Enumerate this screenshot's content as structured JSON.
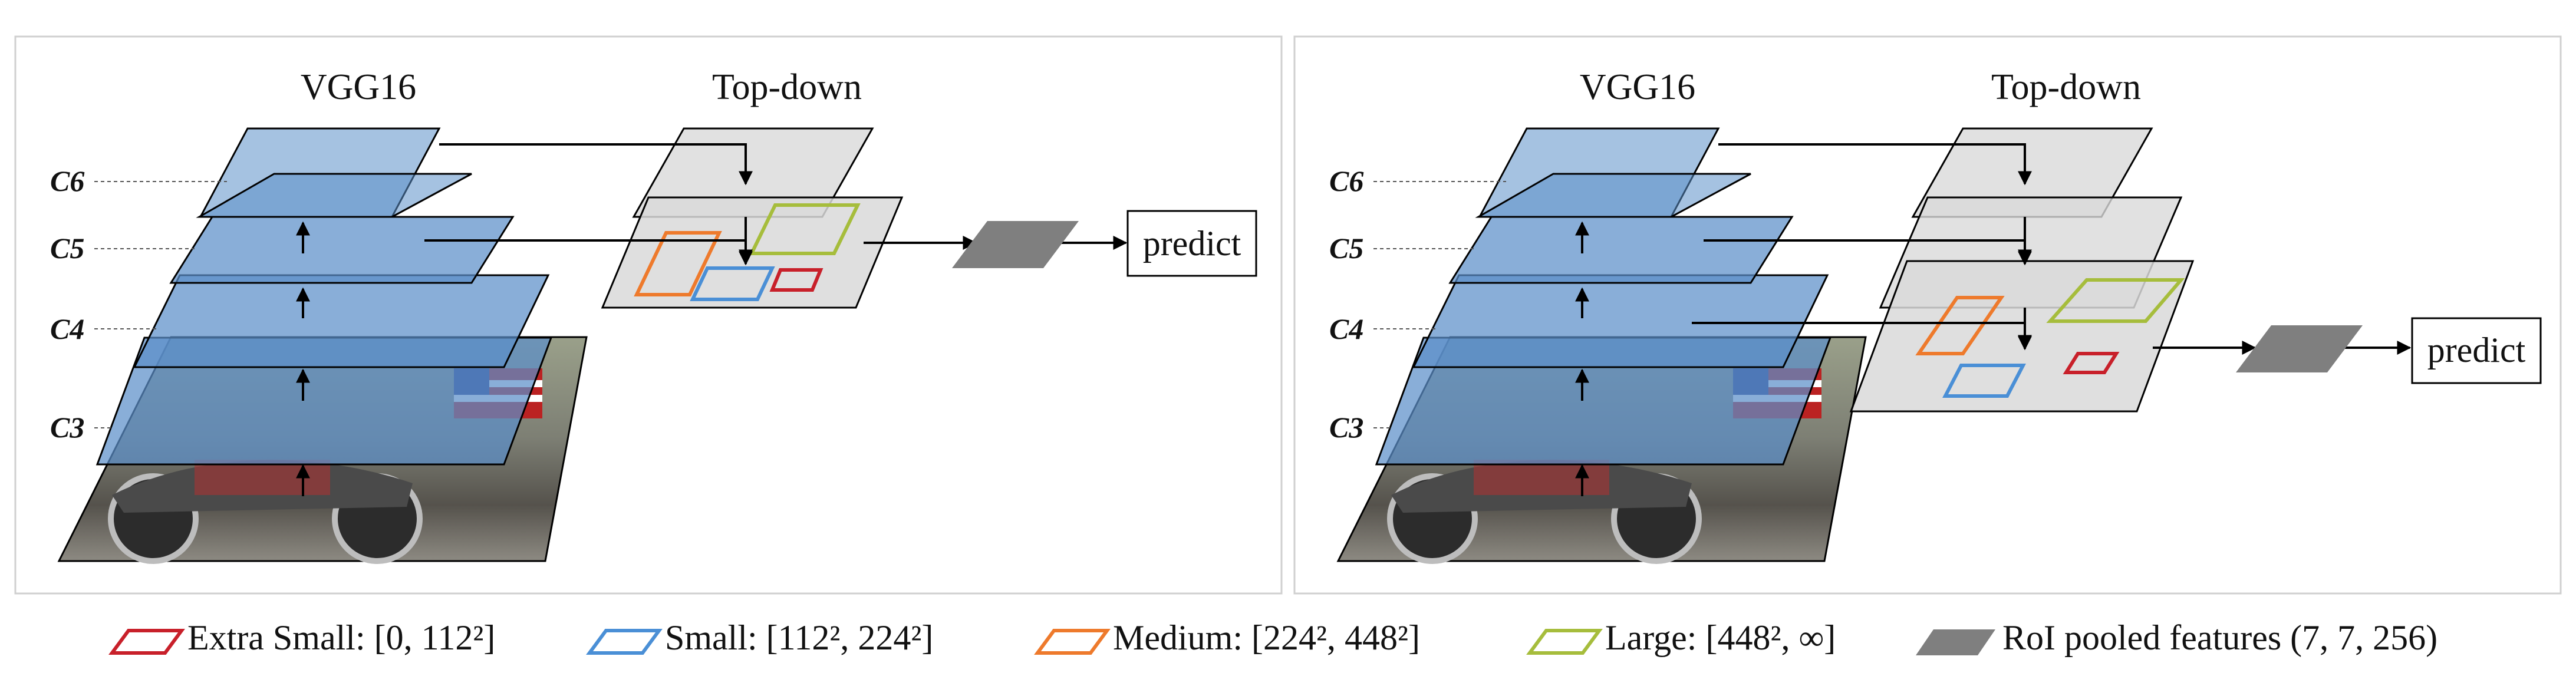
{
  "panels": [
    {
      "id": "left",
      "backbone_title": "VGG16",
      "topdown_title": "Top-down",
      "level_labels": [
        "C6",
        "C5",
        "C4",
        "C3"
      ],
      "predict_label": "predict"
    },
    {
      "id": "right",
      "backbone_title": "VGG16",
      "topdown_title": "Top-down",
      "level_labels": [
        "C6",
        "C5",
        "C4",
        "C3"
      ],
      "predict_label": "predict"
    }
  ],
  "legend": [
    {
      "name": "extra-small",
      "label": "Extra Small: [0, 112²]",
      "color": "#c8202a",
      "filled": false
    },
    {
      "name": "small",
      "label": "Small: [112², 224²]",
      "color": "#4a8fd6",
      "filled": false
    },
    {
      "name": "medium",
      "label": "Medium: [224², 448²]",
      "color": "#ee7a2c",
      "filled": false
    },
    {
      "name": "large",
      "label": "Large: [448², ∞]",
      "color": "#a6bd3c",
      "filled": false
    },
    {
      "name": "roi-pooled",
      "label": "RoI pooled features (7, 7, 256)",
      "color": "#7f7f7f",
      "filled": true
    }
  ],
  "colors": {
    "vgg_layer": "#5b8fc9",
    "topdown_layer": "#d9d9d9",
    "roi_feature": "#7f7f7f",
    "panel_border": "#d0d0d0"
  }
}
